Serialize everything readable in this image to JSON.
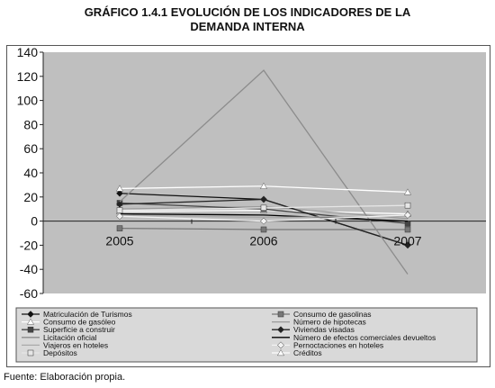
{
  "title": {
    "line1": "GRÁFICO 1.4.1 EVOLUCIÓN DE LOS INDICADORES DE LA",
    "line2": "DEMANDA INTERNA"
  },
  "source": "Fuente: Elaboración propia.",
  "colors": {
    "plot_background": "#bfbfbf",
    "legend_background": "#d9d9d9",
    "axis": "#222222"
  },
  "chart_data": {
    "type": "line",
    "categories": [
      "2005",
      "2006",
      "2007"
    ],
    "ylim": [
      -60,
      140
    ],
    "yticks": [
      140,
      120,
      100,
      80,
      60,
      40,
      20,
      0,
      -20,
      -40,
      -60
    ],
    "xlabel": "",
    "ylabel": "",
    "grid": false,
    "legend_placement": "bottom",
    "series": [
      {
        "name": "Matriculación de Turismos",
        "values": [
          23,
          18,
          -20
        ],
        "color": "#111111",
        "marker": "diamond"
      },
      {
        "name": "Consumo de gasolinas",
        "values": [
          -6,
          -7,
          -7
        ],
        "color": "#777777",
        "marker": "square"
      },
      {
        "name": "Consumo de gasóleo",
        "values": [
          8,
          9,
          6
        ],
        "color": "#ffffff",
        "marker": "triangle"
      },
      {
        "name": "Número de hipotecas",
        "values": [
          10,
          12,
          2
        ],
        "color": "#9a9a9a",
        "marker": "none"
      },
      {
        "name": "Superficie a construir",
        "values": [
          15,
          10,
          -2
        ],
        "color": "#444444",
        "marker": "square"
      },
      {
        "name": "Viviendas visadas",
        "values": [
          14,
          18,
          -20
        ],
        "color": "#222222",
        "marker": "diamond"
      },
      {
        "name": "Licitación oficial",
        "values": [
          16,
          125,
          -44
        ],
        "color": "#8c8c8c",
        "marker": "none"
      },
      {
        "name": "Número de efectos comerciales devueltos",
        "values": [
          6,
          5,
          0
        ],
        "color": "#000000",
        "marker": "none"
      },
      {
        "name": "Viajeros en hoteles",
        "values": [
          5,
          3,
          4
        ],
        "color": "#aaaaaa",
        "marker": "none"
      },
      {
        "name": "Pernoctaciones en hoteles",
        "values": [
          4,
          0,
          5
        ],
        "color": "#f2f2f2",
        "marker": "diamond"
      },
      {
        "name": "Depósitos",
        "values": [
          9,
          11,
          13
        ],
        "color": "#e6e6e6",
        "marker": "square"
      },
      {
        "name": "Créditos",
        "values": [
          27,
          29,
          24
        ],
        "color": "#ffffff",
        "marker": "triangle"
      }
    ]
  }
}
